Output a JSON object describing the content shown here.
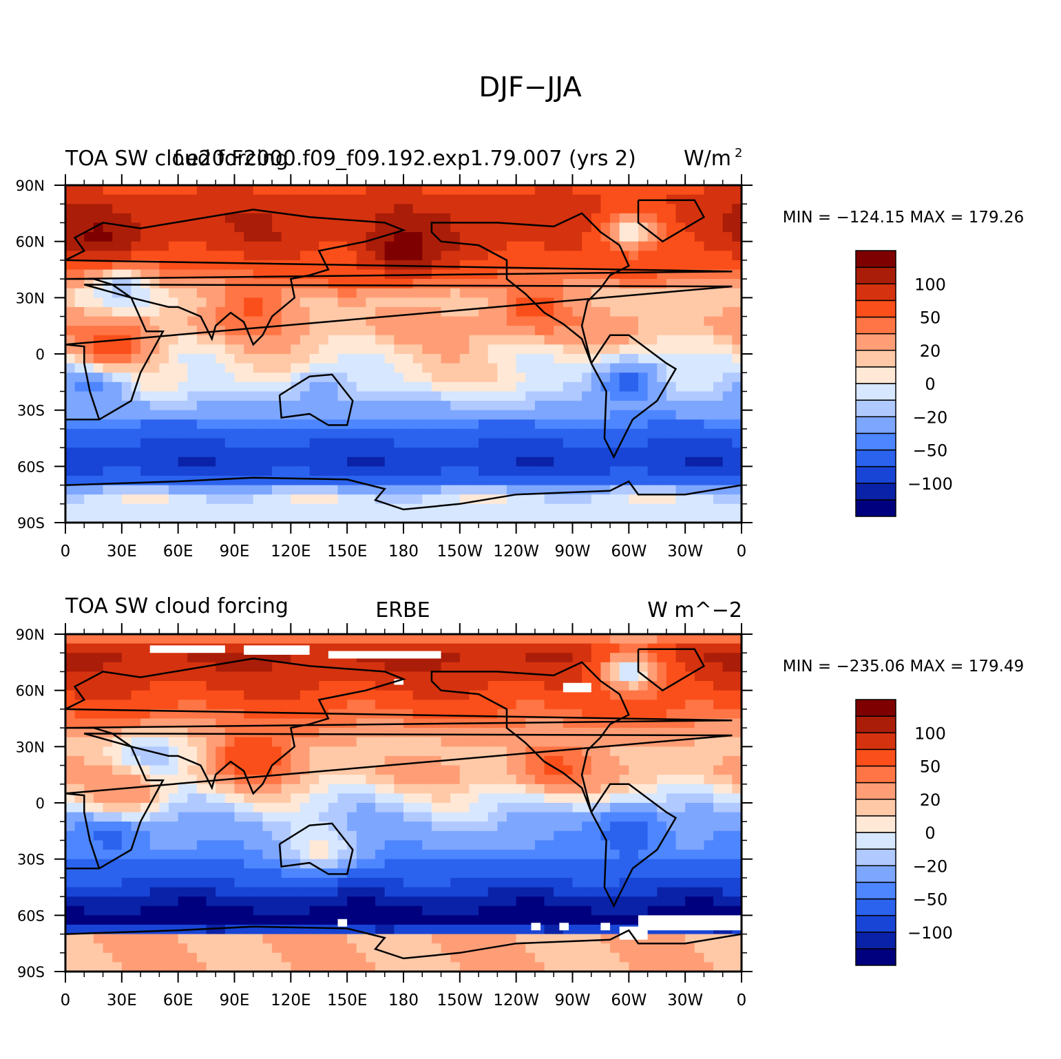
{
  "page_title": "DJF−JJA",
  "palette": [
    "#00007f",
    "#0a22a8",
    "#1945d6",
    "#2b63ee",
    "#4d86ff",
    "#7da6ff",
    "#b0c9ff",
    "#d6e7ff",
    "#ffe8d6",
    "#ffc9a8",
    "#ff9e76",
    "#ff7545",
    "#fa4f1a",
    "#d5320f",
    "#aa1d08",
    "#7f0000"
  ],
  "land_color": "#000000",
  "chart_data": [
    {
      "type": "heatmap",
      "panel": "top",
      "title_left": "TOA SW cloud forcing",
      "title_center": "f.e20.F2000.f09_f09.192.exp1.79.007 (yrs 2)",
      "title_right": "W/m",
      "title_right_sup": "2",
      "min_max": "MIN = −124.15 MAX = 179.26",
      "min": -124.15,
      "max": 179.26,
      "x_ticks": [
        "0",
        "30E",
        "60E",
        "90E",
        "120E",
        "150E",
        "180",
        "150W",
        "120W",
        "90W",
        "60W",
        "30W",
        "0"
      ],
      "y_ticks": [
        "90N",
        "60N",
        "30N",
        "0",
        "30S",
        "60S",
        "90S"
      ],
      "colorbar_levels": [
        -150,
        -125,
        -100,
        -75,
        -50,
        -35,
        -20,
        -10,
        0,
        10,
        20,
        35,
        50,
        75,
        100,
        125,
        150
      ],
      "colorbar_labels": [
        {
          "text": "100",
          "value": 100
        },
        {
          "text": "50",
          "value": 50
        },
        {
          "text": "20",
          "value": 20
        },
        {
          "text": "0",
          "value": 0
        },
        {
          "text": "−20",
          "value": -20
        },
        {
          "text": "−50",
          "value": -50
        },
        {
          "text": "−100",
          "value": -100
        }
      ],
      "field_bands": [
        {
          "lat": 90,
          "value": 70
        },
        {
          "lat": 75,
          "value": 95
        },
        {
          "lat": 60,
          "value": 90
        },
        {
          "lat": 45,
          "value": 55
        },
        {
          "lat": 30,
          "value": 10
        },
        {
          "lat": 15,
          "value": 25
        },
        {
          "lat": 0,
          "value": 10
        },
        {
          "lat": -15,
          "value": 5
        },
        {
          "lat": -30,
          "value": -25
        },
        {
          "lat": -45,
          "value": -70
        },
        {
          "lat": -55,
          "value": -95
        },
        {
          "lat": -65,
          "value": -80
        },
        {
          "lat": -75,
          "value": -5
        },
        {
          "lat": -90,
          "value": -5
        }
      ],
      "patches": [
        {
          "lon": 18,
          "lat": 62,
          "value": 130
        },
        {
          "lon": 150,
          "lat": 45,
          "value": 60
        },
        {
          "lon": 180,
          "lat": 55,
          "value": 140
        },
        {
          "lon": 300,
          "lat": 65,
          "value": 5
        },
        {
          "lon": 15,
          "lat": -15,
          "value": -45
        },
        {
          "lon": 25,
          "lat": 5,
          "value": 60
        },
        {
          "lon": 135,
          "lat": -20,
          "value": -25
        },
        {
          "lon": 300,
          "lat": -15,
          "value": -55
        },
        {
          "lon": 100,
          "lat": 25,
          "value": 55
        },
        {
          "lon": 250,
          "lat": 25,
          "value": 60
        },
        {
          "lon": 30,
          "lat": 35,
          "value": -15
        }
      ]
    },
    {
      "type": "heatmap",
      "panel": "bottom",
      "title_left": "TOA SW cloud forcing",
      "title_center": "ERBE",
      "title_right": "W m^−2",
      "title_right_sup": "",
      "min_max": "MIN = −235.06 MAX = 179.49",
      "min": -235.06,
      "max": 179.49,
      "x_ticks": [
        "0",
        "30E",
        "60E",
        "90E",
        "120E",
        "150E",
        "180",
        "150W",
        "120W",
        "90W",
        "60W",
        "30W",
        "0"
      ],
      "y_ticks": [
        "90N",
        "60N",
        "30N",
        "0",
        "30S",
        "60S",
        "90S"
      ],
      "colorbar_levels": [
        -150,
        -125,
        -100,
        -75,
        -50,
        -35,
        -20,
        -10,
        0,
        10,
        20,
        35,
        50,
        75,
        100,
        125,
        150
      ],
      "colorbar_labels": [
        {
          "text": "100",
          "value": 100
        },
        {
          "text": "50",
          "value": 50
        },
        {
          "text": "20",
          "value": 20
        },
        {
          "text": "0",
          "value": 0
        },
        {
          "text": "−20",
          "value": -20
        },
        {
          "text": "−50",
          "value": -50
        },
        {
          "text": "−100",
          "value": -100
        }
      ],
      "field_bands": [
        {
          "lat": 90,
          "value": 20
        },
        {
          "lat": 80,
          "value": 105
        },
        {
          "lat": 65,
          "value": 85
        },
        {
          "lat": 45,
          "value": 45
        },
        {
          "lat": 30,
          "value": 15
        },
        {
          "lat": 15,
          "value": 20
        },
        {
          "lat": 0,
          "value": -5
        },
        {
          "lat": -10,
          "value": -20
        },
        {
          "lat": -25,
          "value": -35
        },
        {
          "lat": -40,
          "value": -70
        },
        {
          "lat": -55,
          "value": -125
        },
        {
          "lat": -65,
          "value": -150
        },
        {
          "lat": -72,
          "value": 20
        },
        {
          "lat": -90,
          "value": 20
        }
      ],
      "patches": [
        {
          "lon": 300,
          "lat": 70,
          "value": -5
        },
        {
          "lon": 25,
          "lat": -15,
          "value": -60
        },
        {
          "lon": 300,
          "lat": -15,
          "value": -65
        },
        {
          "lon": 135,
          "lat": -25,
          "value": 5
        },
        {
          "lon": 100,
          "lat": 25,
          "value": 70
        },
        {
          "lon": 45,
          "lat": 25,
          "value": -20
        },
        {
          "lon": 260,
          "lat": 20,
          "value": 55
        },
        {
          "lon": 30,
          "lat": 5,
          "value": 35
        }
      ],
      "missing_boxes": [
        {
          "lon0": 45,
          "lon1": 85,
          "lat0": 84,
          "lat1": 80
        },
        {
          "lon0": 95,
          "lon1": 130,
          "lat0": 84,
          "lat1": 79
        },
        {
          "lon0": 140,
          "lon1": 200,
          "lat0": 81,
          "lat1": 77
        },
        {
          "lon0": 175,
          "lon1": 180,
          "lat0": 66,
          "lat1": 63
        },
        {
          "lon0": 265,
          "lon1": 280,
          "lat0": 64,
          "lat1": 59
        },
        {
          "lon0": 145,
          "lon1": 150,
          "lat0": -62,
          "lat1": -66
        },
        {
          "lon0": 248,
          "lon1": 253,
          "lat0": -64,
          "lat1": -68
        },
        {
          "lon0": 263,
          "lon1": 268,
          "lat0": -64,
          "lat1": -68
        },
        {
          "lon0": 285,
          "lon1": 290,
          "lat0": -64,
          "lat1": -68
        },
        {
          "lon0": 305,
          "lon1": 360,
          "lat0": -60,
          "lat1": -68
        },
        {
          "lon0": 295,
          "lon1": 310,
          "lat0": -66,
          "lat1": -73
        }
      ]
    }
  ]
}
